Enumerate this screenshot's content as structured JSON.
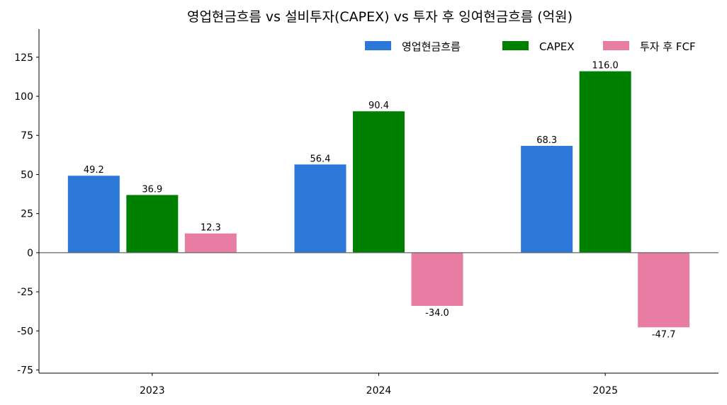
{
  "chart_data": {
    "type": "bar",
    "title": "영업현금흐름 vs 설비투자(CAPEX) vs 투자 후 잉여현금흐름 (억원)",
    "xlabel": "",
    "ylabel": "",
    "categories": [
      "2023",
      "2024",
      "2025"
    ],
    "ylim": [
      -77,
      143
    ],
    "yticks": [
      -75,
      -50,
      -25,
      0,
      25,
      50,
      75,
      100,
      125
    ],
    "grid": false,
    "legend_position": "top-right",
    "series": [
      {
        "name": "영업현금흐름",
        "color": "#2b78d8",
        "values": [
          49.2,
          56.4,
          68.3
        ],
        "labels": [
          "49.2",
          "56.4",
          "68.3"
        ]
      },
      {
        "name": "CAPEX",
        "color": "#008000",
        "values": [
          36.9,
          90.4,
          116.0
        ],
        "labels": [
          "36.9",
          "90.4",
          "116.0"
        ]
      },
      {
        "name": "투자 후 FCF",
        "color": "#e87da3",
        "values": [
          12.3,
          -34.0,
          -47.7
        ],
        "labels": [
          "12.3",
          "-34.0",
          "-47.7"
        ]
      }
    ]
  }
}
